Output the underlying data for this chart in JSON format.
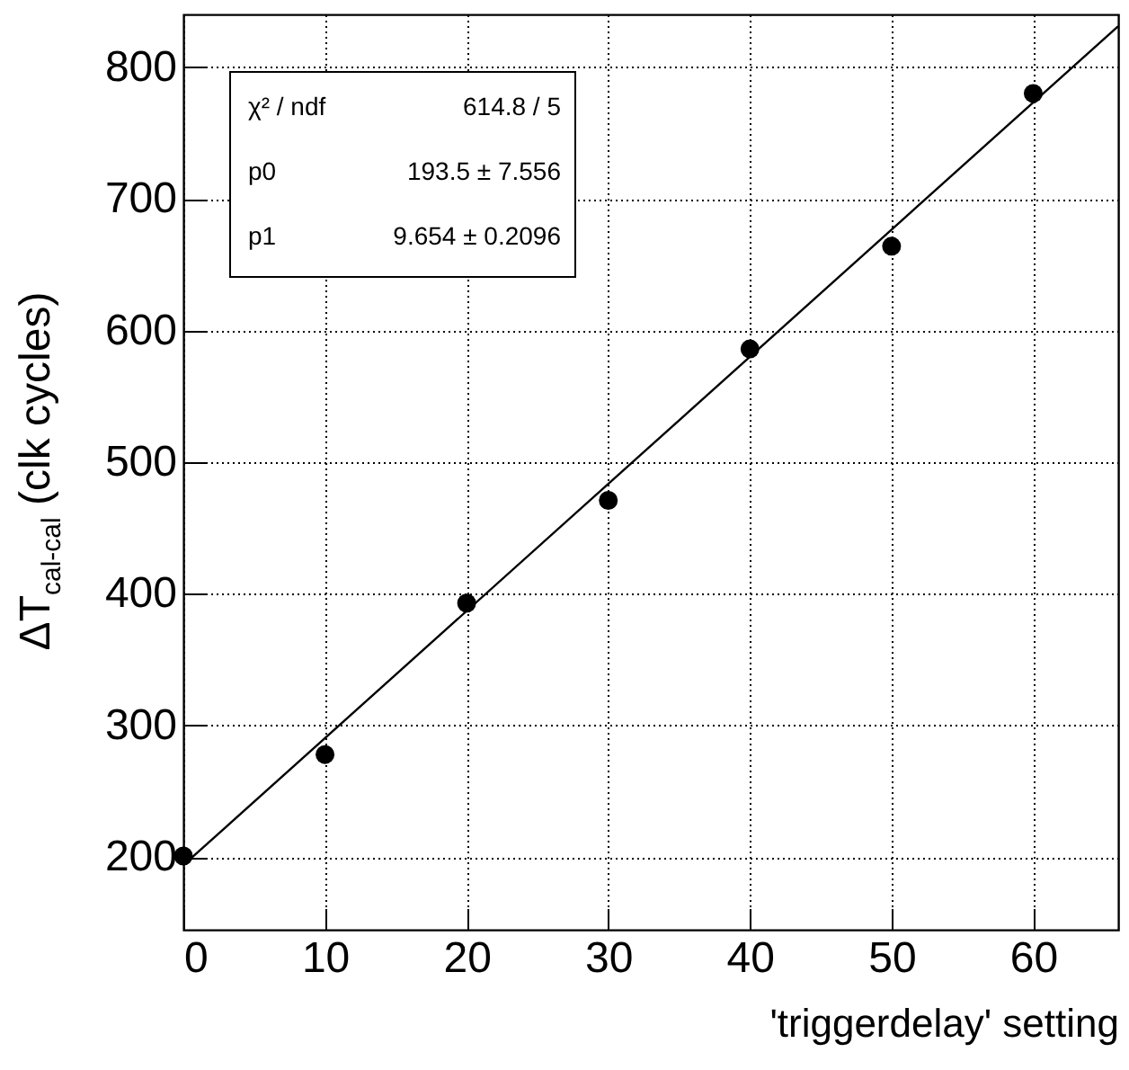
{
  "chart_data": {
    "type": "scatter",
    "xlabel": "'triggerdelay' setting",
    "ylabel": "ΔT$_{cal-cal}$ (clk cycles)",
    "xlim": [
      0,
      66
    ],
    "ylim": [
      145,
      840
    ],
    "xticks": [
      0,
      10,
      20,
      30,
      40,
      50,
      60
    ],
    "yticks": [
      200,
      300,
      400,
      500,
      600,
      700,
      800
    ],
    "grid": true,
    "marker": "circle",
    "series": [
      {
        "color": "#000000",
        "x": [
          0,
          10,
          20,
          30,
          40,
          50,
          60
        ],
        "values": [
          201,
          278,
          393,
          471,
          586,
          664,
          780
        ]
      },
      {
        "type": "line",
        "marker": "none",
        "color": "#000000",
        "x": [
          0,
          66
        ],
        "values": [
          194,
          831
        ]
      }
    ],
    "annotations": [
      "χ² / ndf",
      "614.8 / 5",
      "p0",
      "193.5 ± 7.556",
      "p1",
      "9.654 ± 0.2096"
    ]
  }
}
